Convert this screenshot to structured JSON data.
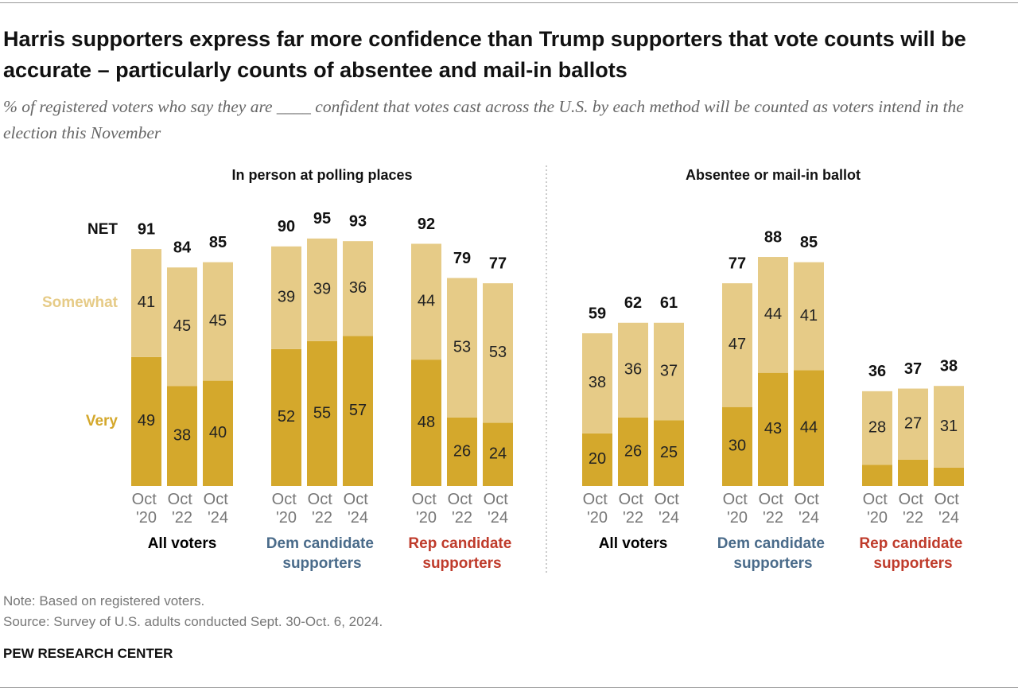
{
  "title": "Harris supporters express far more confidence than Trump supporters that vote counts will be accurate – particularly counts of absentee and mail-in ballots",
  "subtitle": "% of registered voters who say they are ____ confident that votes cast across the U.S. by each method will be counted as voters intend in the election this November",
  "chart_data": [
    {
      "type": "bar",
      "stacked": true,
      "title": "In person at polling places",
      "ylim": [
        0,
        100
      ],
      "net_label": "NET",
      "groups": [
        {
          "name": "All voters",
          "color": "#000000",
          "categories": [
            "Oct '20",
            "Oct '22",
            "Oct '24"
          ],
          "net": [
            91,
            84,
            85
          ],
          "series": [
            {
              "name": "Very",
              "color": "#d4a82c",
              "values": [
                49,
                38,
                40
              ]
            },
            {
              "name": "Somewhat",
              "color": "#e6cb87",
              "values": [
                41,
                45,
                45
              ]
            }
          ]
        },
        {
          "name": "Dem candidate supporters",
          "color": "#4a6b8a",
          "categories": [
            "Oct '20",
            "Oct '22",
            "Oct '24"
          ],
          "net": [
            90,
            95,
            93
          ],
          "series": [
            {
              "name": "Very",
              "color": "#d4a82c",
              "values": [
                52,
                55,
                57
              ]
            },
            {
              "name": "Somewhat",
              "color": "#e6cb87",
              "values": [
                39,
                39,
                36
              ]
            }
          ]
        },
        {
          "name": "Rep candidate supporters",
          "color": "#bf3b2b",
          "categories": [
            "Oct '20",
            "Oct '22",
            "Oct '24"
          ],
          "net": [
            92,
            79,
            77
          ],
          "series": [
            {
              "name": "Very",
              "color": "#d4a82c",
              "values": [
                48,
                26,
                24
              ]
            },
            {
              "name": "Somewhat",
              "color": "#e6cb87",
              "values": [
                44,
                53,
                53
              ]
            }
          ]
        }
      ]
    },
    {
      "type": "bar",
      "stacked": true,
      "title": "Absentee or mail-in ballot",
      "ylim": [
        0,
        100
      ],
      "groups": [
        {
          "name": "All voters",
          "color": "#000000",
          "categories": [
            "Oct '20",
            "Oct '22",
            "Oct '24"
          ],
          "net": [
            59,
            62,
            61
          ],
          "series": [
            {
              "name": "Very",
              "color": "#d4a82c",
              "values": [
                20,
                26,
                25
              ]
            },
            {
              "name": "Somewhat",
              "color": "#e6cb87",
              "values": [
                38,
                36,
                37
              ]
            }
          ]
        },
        {
          "name": "Dem candidate supporters",
          "color": "#4a6b8a",
          "categories": [
            "Oct '20",
            "Oct '22",
            "Oct '24"
          ],
          "net": [
            77,
            88,
            85
          ],
          "series": [
            {
              "name": "Very",
              "color": "#d4a82c",
              "values": [
                30,
                43,
                44
              ]
            },
            {
              "name": "Somewhat",
              "color": "#e6cb87",
              "values": [
                47,
                44,
                41
              ]
            }
          ]
        },
        {
          "name": "Rep candidate supporters",
          "color": "#bf3b2b",
          "categories": [
            "Oct '20",
            "Oct '22",
            "Oct '24"
          ],
          "net": [
            36,
            37,
            38
          ],
          "series": [
            {
              "name": "Very",
              "color": "#d4a82c",
              "values": [
                8,
                10,
                7
              ],
              "value_labels": [
                null,
                null,
                null
              ]
            },
            {
              "name": "Somewhat",
              "color": "#e6cb87",
              "values": [
                28,
                27,
                31
              ]
            }
          ]
        }
      ]
    }
  ],
  "note": "Note: Based on registered voters.",
  "source": "Source: Survey of U.S. adults conducted Sept. 30-Oct. 6, 2024.",
  "footer": "PEW RESEARCH CENTER"
}
